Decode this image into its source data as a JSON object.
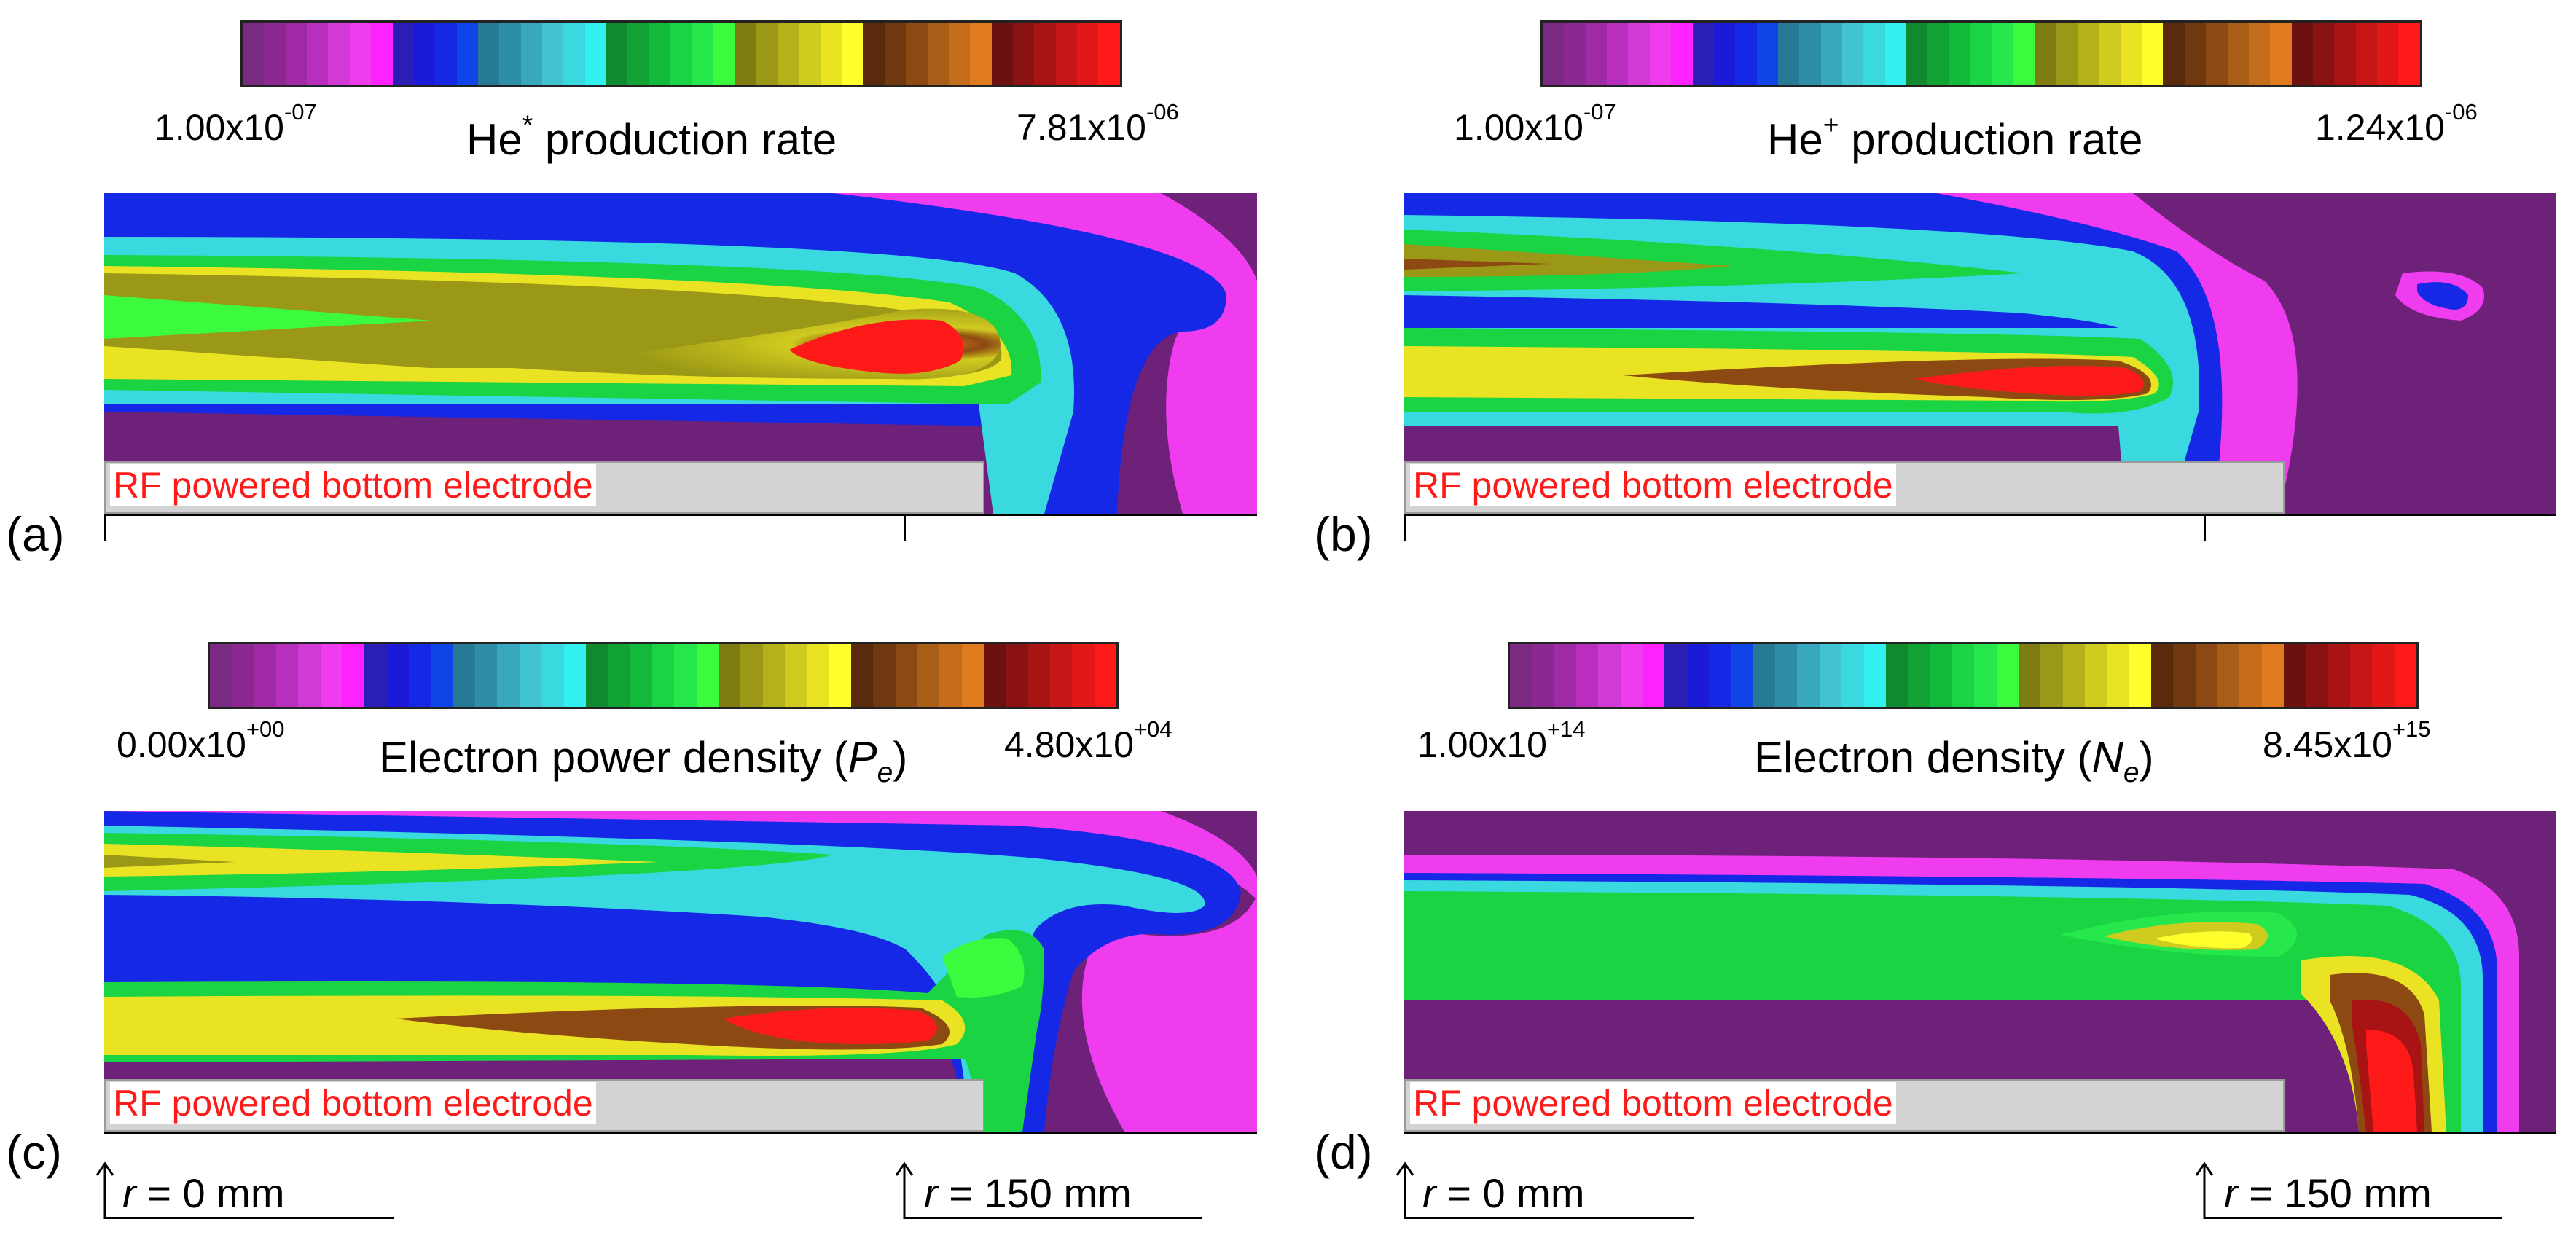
{
  "colorbar_colors": [
    "#7a2a80",
    "#8c2892",
    "#a02aa6",
    "#b82ebd",
    "#d23ad6",
    "#ee3cee",
    "#ff22ff",
    "#2a1eb4",
    "#1a1ad8",
    "#1428e6",
    "#0f44e6",
    "#277a96",
    "#2e8ea8",
    "#38a8be",
    "#41c3d2",
    "#3ad8df",
    "#32f0ef",
    "#0f8a2e",
    "#10a233",
    "#12b93a",
    "#1ad444",
    "#26e84c",
    "#3cfa3e",
    "#7f7d12",
    "#9a9816",
    "#b5b11b",
    "#d0cb1f",
    "#eae323",
    "#ffff2d",
    "#5a2a0c",
    "#70380e",
    "#8c4a12",
    "#a85e16",
    "#c46c1a",
    "#e07a1e",
    "#6d1010",
    "#8a1212",
    "#a81414",
    "#c61616",
    "#e21818",
    "#ff1a1a"
  ],
  "panels": [
    {
      "id": "a",
      "panel_label": "(a)",
      "cbar_min": {
        "base": "1.00x10",
        "exp": "-07"
      },
      "cbar_max": {
        "base": "7.81x10",
        "exp": "-06"
      },
      "cbar_title": {
        "pre": "He",
        "sup": "*",
        "post": " production rate",
        "italic": "",
        "sub": "",
        "close": ""
      },
      "electrode_label": "RF powered bottom electrode",
      "r0_label": "",
      "r150_label": ""
    },
    {
      "id": "b",
      "panel_label": "(b)",
      "cbar_min": {
        "base": "1.00x10",
        "exp": "-07"
      },
      "cbar_max": {
        "base": "1.24x10",
        "exp": "-06"
      },
      "cbar_title": {
        "pre": "He",
        "sup": "+",
        "post": " production rate",
        "italic": "",
        "sub": "",
        "close": ""
      },
      "electrode_label": "RF powered bottom electrode",
      "r0_label": "",
      "r150_label": ""
    },
    {
      "id": "c",
      "panel_label": "(c)",
      "cbar_min": {
        "base": "0.00x10",
        "exp": "+00"
      },
      "cbar_max": {
        "base": "4.80x10",
        "exp": "+04"
      },
      "cbar_title": {
        "pre": "Electron power density (",
        "sup": "",
        "post": "",
        "italic": "P",
        "sub": "e",
        "close": ")"
      },
      "electrode_label": "RF powered bottom electrode",
      "r0_label": {
        "var": "r",
        "rest": " = 0 mm"
      },
      "r150_label": {
        "var": "r",
        "rest": " = 150 mm"
      }
    },
    {
      "id": "d",
      "panel_label": "(d)",
      "cbar_min": {
        "base": "1.00x10",
        "exp": "+14"
      },
      "cbar_max": {
        "base": "8.45x10",
        "exp": "+15"
      },
      "cbar_title": {
        "pre": "Electron density (",
        "sup": "",
        "post": "",
        "italic": "N",
        "sub": "e",
        "close": ")"
      },
      "electrode_label": "RF powered bottom electrode",
      "r0_label": {
        "var": "r",
        "rest": " = 0 mm"
      },
      "r150_label": {
        "var": "r",
        "rest": " = 150 mm"
      }
    }
  ]
}
